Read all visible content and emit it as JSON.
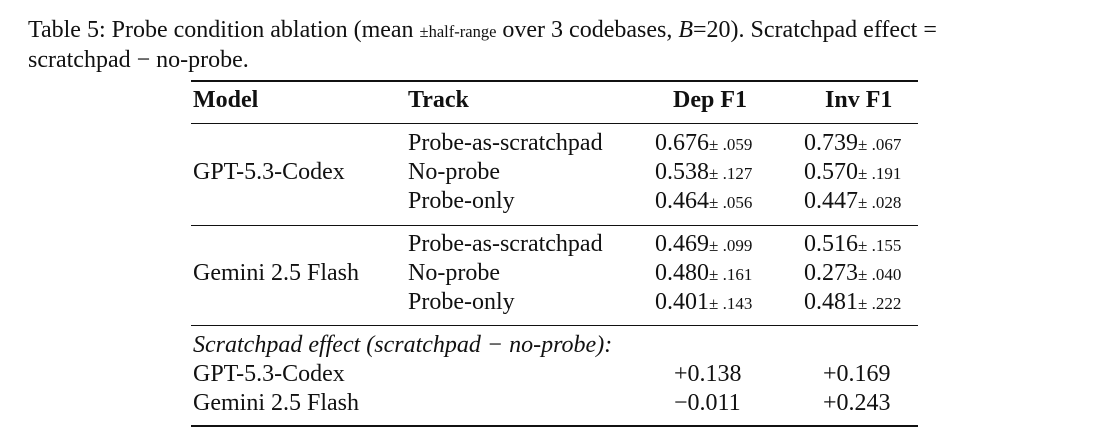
{
  "caption": {
    "prefix": "Table 5: Probe condition ablation (mean ",
    "pm": "±",
    "half_range": "half-range",
    "mid": " over 3 codebases, ",
    "b_var": "B",
    "b_val": "=20). Scratchpad effect =",
    "line2": "scratchpad − no-probe."
  },
  "table": {
    "headers": {
      "model": "Model",
      "track": "Track",
      "dep": "Dep F1",
      "inv": "Inv F1"
    },
    "groups": [
      {
        "model": "GPT-5.3-Codex",
        "rows": [
          {
            "track": "Probe-as-scratchpad",
            "dep": "0.676",
            "dep_err": "± .059",
            "inv": "0.739",
            "inv_err": "± .067"
          },
          {
            "track": "No-probe",
            "dep": "0.538",
            "dep_err": "± .127",
            "inv": "0.570",
            "inv_err": "± .191"
          },
          {
            "track": "Probe-only",
            "dep": "0.464",
            "dep_err": "± .056",
            "inv": "0.447",
            "inv_err": "± .028"
          }
        ]
      },
      {
        "model": "Gemini 2.5 Flash",
        "rows": [
          {
            "track": "Probe-as-scratchpad",
            "dep": "0.469",
            "dep_err": "± .099",
            "inv": "0.516",
            "inv_err": "± .155"
          },
          {
            "track": "No-probe",
            "dep": "0.480",
            "dep_err": "± .161",
            "inv": "0.273",
            "inv_err": "± .040"
          },
          {
            "track": "Probe-only",
            "dep": "0.401",
            "dep_err": "± .143",
            "inv": "0.481",
            "inv_err": "± .222"
          }
        ]
      }
    ],
    "effect": {
      "title": "Scratchpad effect (scratchpad − no-probe):",
      "rows": [
        {
          "model": "GPT-5.3-Codex",
          "dep": "+0.138",
          "inv": "+0.169"
        },
        {
          "model": "Gemini 2.5 Flash",
          "dep": "−0.011",
          "inv": "+0.243"
        }
      ]
    }
  }
}
